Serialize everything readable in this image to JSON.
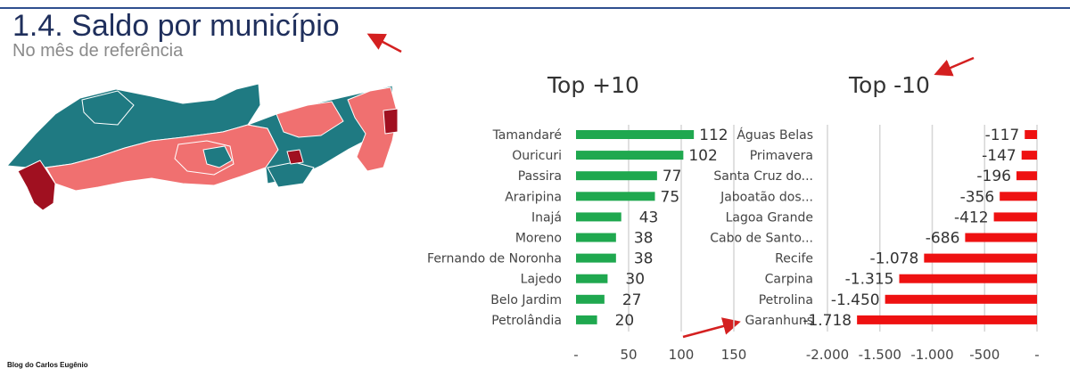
{
  "header": {
    "title": "1.4. Saldo por município",
    "subtitle": "No mês de referência"
  },
  "footer": {
    "credit": "Blog do Carlos Eugênio"
  },
  "colors": {
    "positive_bar": "#1fa84f",
    "negative_bar": "#ee1111",
    "annotation_arrow": "#d42020",
    "map_teal": "#1f7a82",
    "map_salmon": "#f07070",
    "map_dark_red": "#a01020"
  },
  "map": {
    "icon": "pernambuco-municipalities-map"
  },
  "chart_data": [
    {
      "type": "bar",
      "orientation": "horizontal",
      "title": "Top +10",
      "categories": [
        "Tamandaré",
        "Ouricuri",
        "Passira",
        "Araripina",
        "Inajá",
        "Moreno",
        "Fernando de Noronha",
        "Lajedo",
        "Belo Jardim",
        "Petrolândia"
      ],
      "values": [
        112,
        102,
        77,
        75,
        43,
        38,
        38,
        30,
        27,
        20
      ],
      "data_labels": [
        "112",
        "102",
        "77",
        "75",
        "43",
        "38",
        "38",
        "30",
        "27",
        "20"
      ],
      "xlim": [
        0,
        150
      ],
      "ticks": [
        "-",
        "50",
        "100",
        "150"
      ],
      "grid": true
    },
    {
      "type": "bar",
      "orientation": "horizontal",
      "title": "Top -10",
      "categories": [
        "Águas Belas",
        "Primavera",
        "Santa Cruz do...",
        "Jaboatão dos...",
        "Lagoa Grande",
        "Cabo de Santo...",
        "Recife",
        "Carpina",
        "Petrolina",
        "Garanhuns"
      ],
      "values": [
        -117,
        -147,
        -196,
        -356,
        -412,
        -686,
        -1078,
        -1315,
        -1450,
        -1718
      ],
      "data_labels": [
        "-117",
        "-147",
        "-196",
        "-356",
        "-412",
        "-686",
        "-1.078",
        "-1.315",
        "-1.450",
        "-1.718"
      ],
      "xlim": [
        -2000,
        0
      ],
      "ticks": [
        "-2.000",
        "-1.500",
        "-1.000",
        "-500",
        "-"
      ],
      "grid": true
    }
  ]
}
